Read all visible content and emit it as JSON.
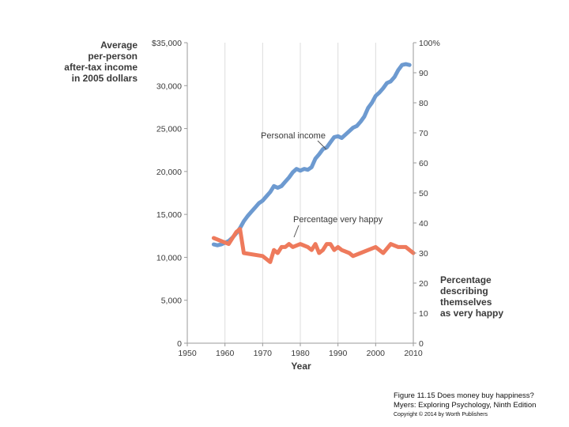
{
  "chart_data": {
    "type": "line",
    "title": "",
    "xlabel": "Year",
    "left_axis_label": [
      "Average",
      "per-person",
      "after-tax income",
      "in 2005 dollars"
    ],
    "right_axis_label": [
      "Percentage",
      "describing",
      "themselves",
      "as very happy"
    ],
    "xlim": [
      1950,
      2010
    ],
    "ylim_left": [
      0,
      35000
    ],
    "ylim_right": [
      0,
      100
    ],
    "x_ticks": [
      "1950",
      "1960",
      "1970",
      "1980",
      "1990",
      "2000",
      "2010"
    ],
    "left_ticks": [
      "0",
      "5,000",
      "10,000",
      "15,000",
      "20,000",
      "25,000",
      "30,000",
      "$35,000"
    ],
    "right_ticks": [
      "0",
      "10",
      "20",
      "30",
      "40",
      "50",
      "60",
      "70",
      "80",
      "90",
      "100%"
    ],
    "grid": "vertical",
    "series": [
      {
        "name": "Personal income",
        "axis": "left",
        "color": "#6d9ad0",
        "x": [
          1957,
          1958,
          1959,
          1960,
          1961,
          1962,
          1963,
          1964,
          1965,
          1966,
          1967,
          1968,
          1969,
          1970,
          1971,
          1972,
          1973,
          1974,
          1975,
          1976,
          1977,
          1978,
          1979,
          1980,
          1981,
          1982,
          1983,
          1984,
          1985,
          1986,
          1987,
          1988,
          1989,
          1990,
          1991,
          1992,
          1993,
          1994,
          1995,
          1996,
          1997,
          1998,
          1999,
          2000,
          2001,
          2002,
          2003,
          2004,
          2005,
          2006,
          2007,
          2008,
          2009
        ],
        "values": [
          11500,
          11400,
          11500,
          11700,
          11900,
          12300,
          12800,
          13400,
          14200,
          14800,
          15300,
          15800,
          16300,
          16600,
          17100,
          17600,
          18300,
          18100,
          18300,
          18800,
          19300,
          19900,
          20300,
          20100,
          20300,
          20200,
          20500,
          21500,
          22000,
          22600,
          22800,
          23400,
          24000,
          24100,
          23900,
          24300,
          24700,
          25100,
          25300,
          25800,
          26400,
          27400,
          28000,
          28800,
          29200,
          29700,
          30300,
          30500,
          31000,
          31800,
          32400,
          32500,
          32400
        ]
      },
      {
        "name": "Percentage very happy",
        "axis": "right",
        "color": "#ee7a5c",
        "x": [
          1957,
          1959,
          1961,
          1963,
          1964,
          1965,
          1970,
          1971,
          1972,
          1973,
          1974,
          1975,
          1976,
          1977,
          1978,
          1980,
          1982,
          1983,
          1984,
          1985,
          1986,
          1987,
          1988,
          1989,
          1990,
          1991,
          1993,
          1994,
          1996,
          1998,
          2000,
          2002,
          2004,
          2006,
          2008,
          2010
        ],
        "values": [
          35,
          34,
          33,
          37,
          38,
          30,
          29,
          28,
          27,
          31,
          30,
          32,
          32,
          33,
          32,
          33,
          32,
          31,
          33,
          30,
          31,
          33,
          33,
          31,
          32,
          31,
          30,
          29,
          30,
          31,
          32,
          30,
          33,
          32,
          32,
          30
        ]
      }
    ],
    "annotations": [
      "Personal income",
      "Percentage very happy"
    ]
  },
  "caption": {
    "line1": "Figure 11.15 Does money buy happiness?",
    "line2": "Myers: Exploring Psychology, Ninth Edition",
    "line3": "Copyright © 2014 by Worth Publishers"
  }
}
